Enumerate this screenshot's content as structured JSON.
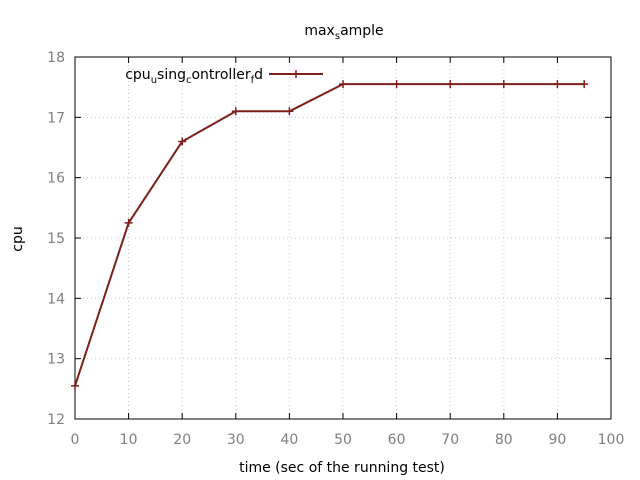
{
  "chart_data": {
    "type": "line",
    "title": "max_sample",
    "xlabel": "time (sec of the running test)",
    "ylabel": "cpu",
    "xlim": [
      0,
      100
    ],
    "ylim": [
      12,
      18
    ],
    "xticks": [
      0,
      10,
      20,
      30,
      40,
      50,
      60,
      70,
      80,
      90,
      100
    ],
    "yticks": [
      12,
      13,
      14,
      15,
      16,
      17,
      18
    ],
    "grid": true,
    "legend_position": "top-left",
    "x": [
      0,
      10,
      20,
      30,
      40,
      50,
      60,
      70,
      80,
      90,
      95
    ],
    "series": [
      {
        "name": "cpu_using_controller_fd",
        "color": "#7f1f1a",
        "marker": "plus",
        "values": [
          12.55,
          15.25,
          16.6,
          17.1,
          17.1,
          17.55,
          17.55,
          17.55,
          17.55,
          17.55,
          17.55
        ]
      }
    ]
  }
}
